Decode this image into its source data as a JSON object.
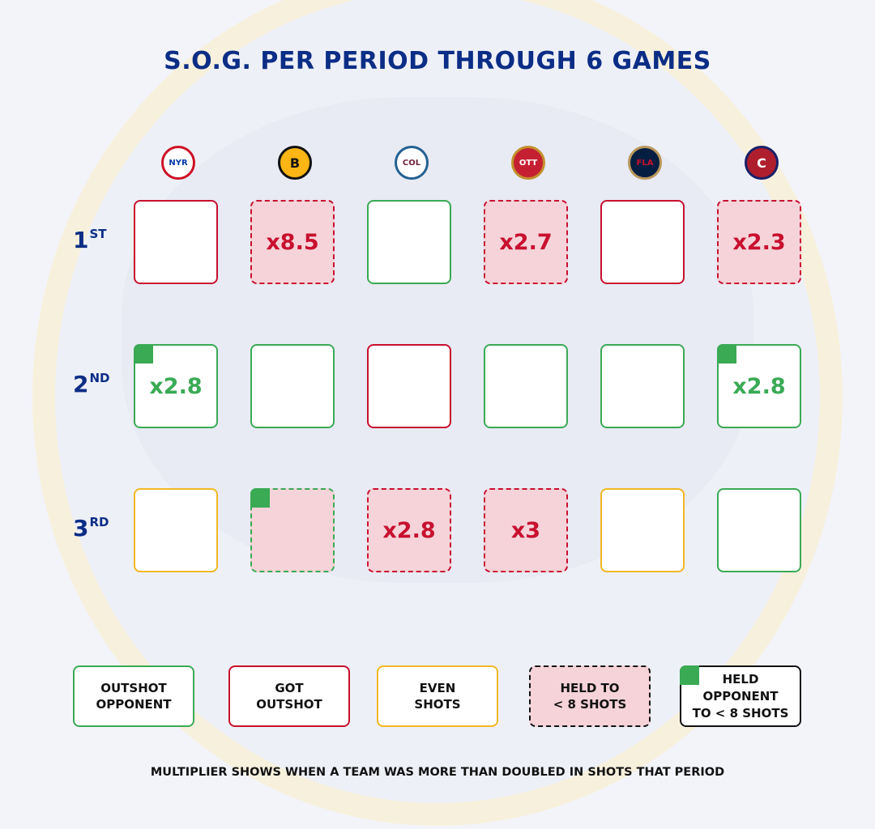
{
  "title": "S.O.G. PER PERIOD THROUGH 6 GAMES",
  "colors": {
    "outshot": "#3aaa55",
    "got_outshot": "#c8102e",
    "even": "#f2b824",
    "held_fill": "#f5d3d9",
    "navy": "#0b2d86"
  },
  "chart_data": {
    "type": "table",
    "title": "S.O.G. PER PERIOD THROUGH 6 GAMES",
    "columns": [
      {
        "team": "Rangers",
        "abbr": "NYR",
        "bg": "#ffffff",
        "fg": "#0038a8",
        "ring": "#ce1126"
      },
      {
        "team": "Bruins",
        "abbr": "B",
        "bg": "#fcb514",
        "fg": "#111111",
        "ring": "#111111"
      },
      {
        "team": "Avalanche",
        "abbr": "COL",
        "bg": "#ffffff",
        "fg": "#6f263d",
        "ring": "#236192"
      },
      {
        "team": "Senators",
        "abbr": "OTT",
        "bg": "#c52032",
        "fg": "#ffffff",
        "ring": "#c2912c"
      },
      {
        "team": "Panthers",
        "abbr": "FLA",
        "bg": "#041e42",
        "fg": "#c8102e",
        "ring": "#b9975b"
      },
      {
        "team": "Canadiens",
        "abbr": "C",
        "bg": "#af1e2d",
        "fg": "#ffffff",
        "ring": "#192168"
      }
    ],
    "rows": [
      {
        "label": "1",
        "suffix": "ST",
        "cells": [
          {
            "outcome": "got_outshot",
            "held": false,
            "held_opp": false,
            "mult": ""
          },
          {
            "outcome": "got_outshot",
            "held": true,
            "held_opp": false,
            "mult": "x8.5"
          },
          {
            "outcome": "outshot",
            "held": false,
            "held_opp": false,
            "mult": ""
          },
          {
            "outcome": "got_outshot",
            "held": true,
            "held_opp": false,
            "mult": "x2.7"
          },
          {
            "outcome": "got_outshot",
            "held": false,
            "held_opp": false,
            "mult": ""
          },
          {
            "outcome": "got_outshot",
            "held": true,
            "held_opp": false,
            "mult": "x2.3"
          }
        ]
      },
      {
        "label": "2",
        "suffix": "ND",
        "cells": [
          {
            "outcome": "outshot",
            "held": false,
            "held_opp": true,
            "mult": "x2.8"
          },
          {
            "outcome": "outshot",
            "held": false,
            "held_opp": false,
            "mult": ""
          },
          {
            "outcome": "got_outshot",
            "held": false,
            "held_opp": false,
            "mult": ""
          },
          {
            "outcome": "outshot",
            "held": false,
            "held_opp": false,
            "mult": ""
          },
          {
            "outcome": "outshot",
            "held": false,
            "held_opp": false,
            "mult": ""
          },
          {
            "outcome": "outshot",
            "held": false,
            "held_opp": true,
            "mult": "x2.8"
          }
        ]
      },
      {
        "label": "3",
        "suffix": "RD",
        "cells": [
          {
            "outcome": "even",
            "held": false,
            "held_opp": false,
            "mult": ""
          },
          {
            "outcome": "outshot",
            "held": true,
            "held_opp": true,
            "mult": ""
          },
          {
            "outcome": "got_outshot",
            "held": true,
            "held_opp": false,
            "mult": "x2.8"
          },
          {
            "outcome": "got_outshot",
            "held": true,
            "held_opp": false,
            "mult": "x3"
          },
          {
            "outcome": "even",
            "held": false,
            "held_opp": false,
            "mult": ""
          },
          {
            "outcome": "outshot",
            "held": false,
            "held_opp": false,
            "mult": ""
          }
        ]
      }
    ]
  },
  "legend": [
    {
      "label": "OUTSHOT\nOPPONENT",
      "style": "outshot"
    },
    {
      "label": "GOT\nOUTSHOT",
      "style": "got_outshot"
    },
    {
      "label": "EVEN\nSHOTS",
      "style": "even"
    },
    {
      "label": "HELD TO\n< 8 SHOTS",
      "style": "held"
    },
    {
      "label": "HELD\nOPPONENT\nTO < 8 SHOTS",
      "style": "held_opp"
    }
  ],
  "footnote": "MULTIPLIER SHOWS WHEN A TEAM WAS MORE THAN DOUBLED IN SHOTS THAT PERIOD"
}
